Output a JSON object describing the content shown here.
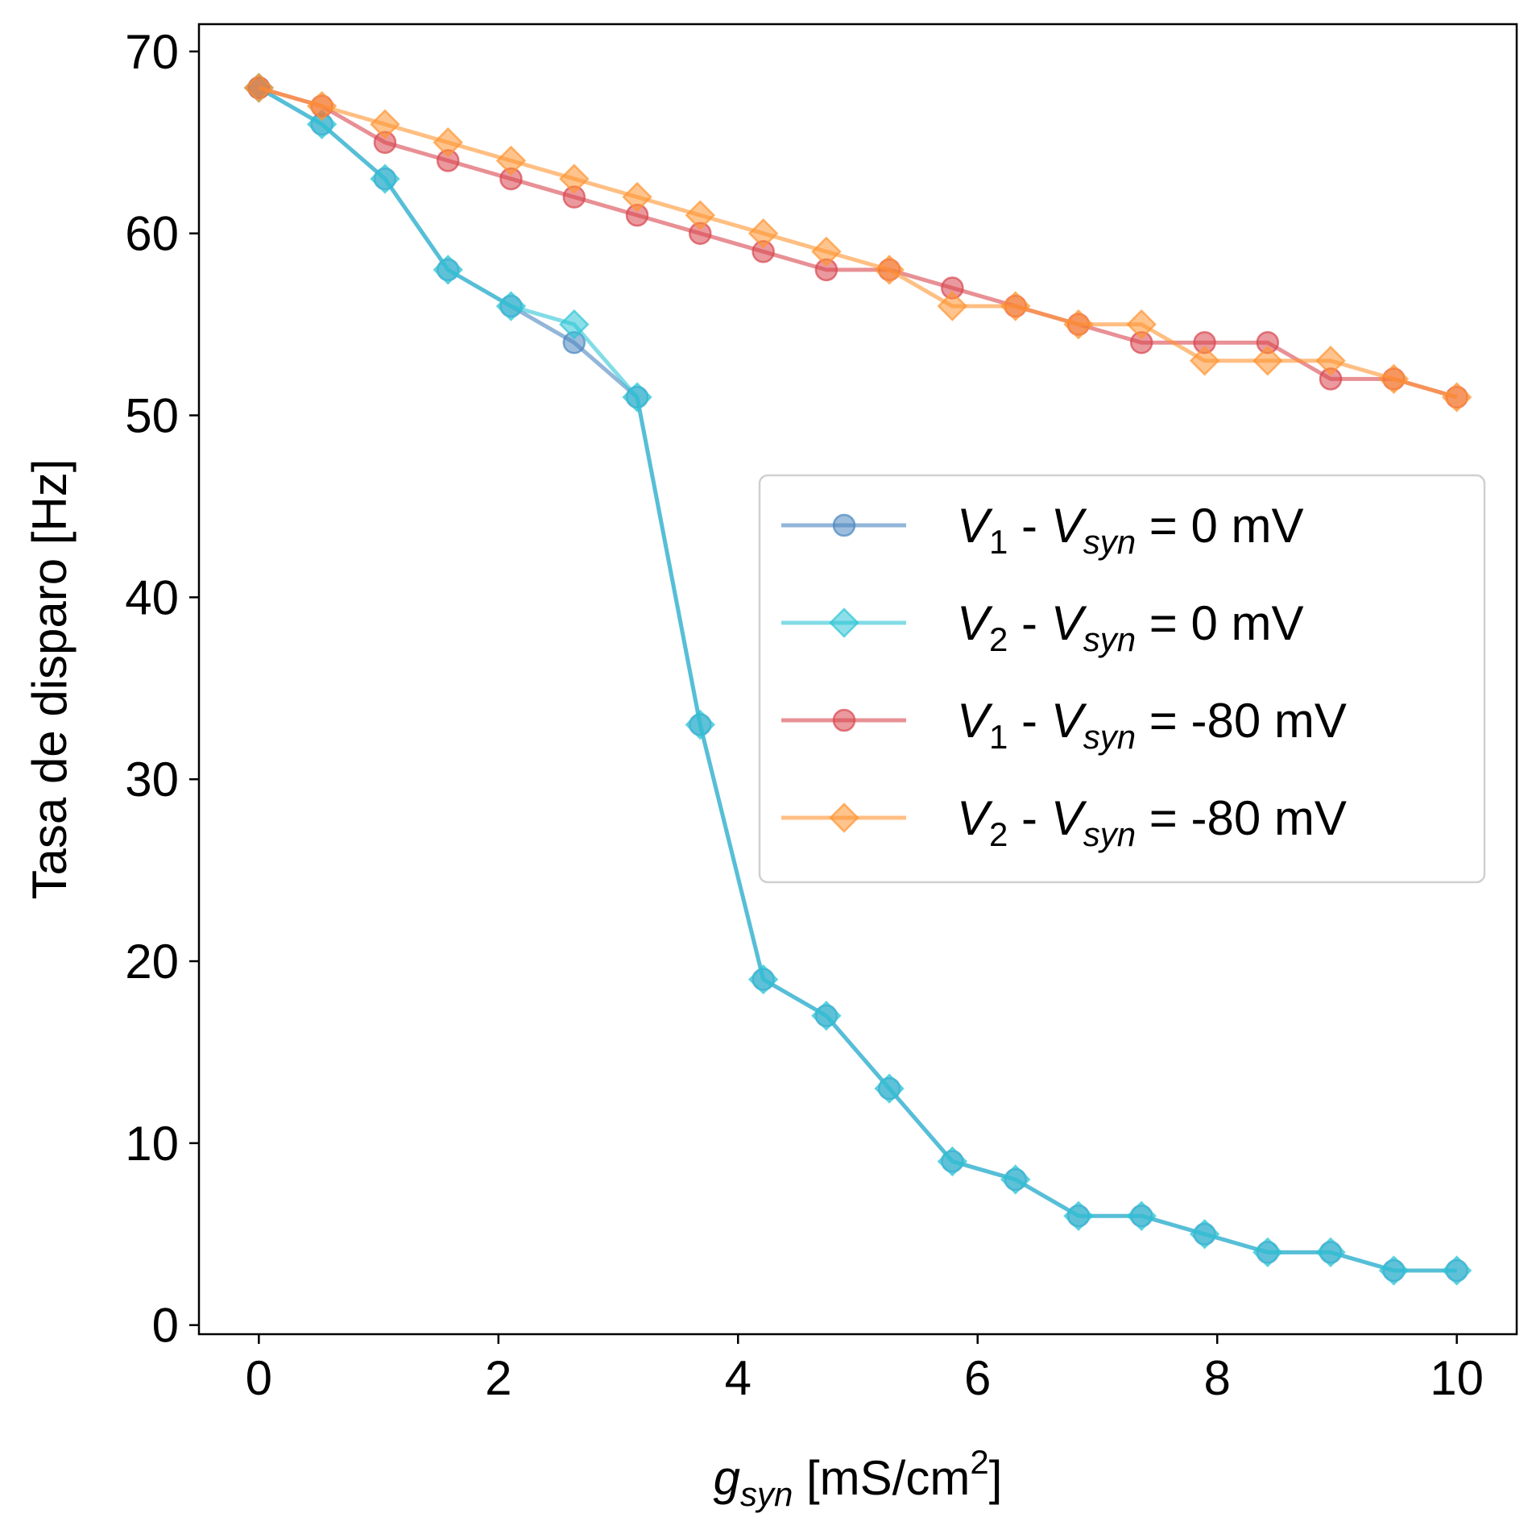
{
  "chart_data": {
    "type": "line",
    "xlabel": {
      "main": "g",
      "sub": "syn",
      "unit_pre": " [mS/cm",
      "sup": "2",
      "unit_post": "]"
    },
    "ylabel": "Tasa de disparo [Hz]",
    "xlim": [
      -0.5,
      10.5
    ],
    "ylim": [
      -0.5,
      71.5
    ],
    "xticks": [
      0,
      2,
      4,
      6,
      8,
      10
    ],
    "xtick_labels": [
      "0",
      "2",
      "4",
      "6",
      "8",
      "10"
    ],
    "yticks": [
      0,
      10,
      20,
      30,
      40,
      50,
      60,
      70
    ],
    "ytick_labels": [
      "0",
      "10",
      "20",
      "30",
      "40",
      "50",
      "60",
      "70"
    ],
    "grid": false,
    "legend_position": "center-right",
    "x": [
      0,
      0.526,
      1.053,
      1.579,
      2.105,
      2.632,
      3.158,
      3.684,
      4.211,
      4.737,
      5.263,
      5.789,
      6.316,
      6.842,
      7.368,
      7.895,
      8.421,
      8.947,
      9.474,
      10
    ],
    "series": [
      {
        "name": "V1 - Vsyn = 0 mV",
        "label_main": "V",
        "label_index": "1",
        "label_mid": " - ",
        "label_syn": "V",
        "label_syn_sub": "syn",
        "label_end": " = 0 mV",
        "color": "#4a86c0",
        "marker": "circle",
        "values": [
          68,
          66,
          63,
          58,
          56,
          54,
          51,
          33,
          19,
          17,
          13,
          9,
          8,
          6,
          6,
          5,
          4,
          4,
          3,
          3
        ]
      },
      {
        "name": "V2 - Vsyn = 0 mV",
        "label_main": "V",
        "label_index": "2",
        "label_mid": " - ",
        "label_syn": "V",
        "label_syn_sub": "syn",
        "label_end": " = 0 mV",
        "color": "#2ec4d6",
        "marker": "diamond",
        "values": [
          68,
          66,
          63,
          58,
          56,
          55,
          51,
          33,
          19,
          17,
          13,
          9,
          8,
          6,
          6,
          5,
          4,
          4,
          3,
          3
        ]
      },
      {
        "name": "V1 - Vsyn = -80 mV",
        "label_main": "V",
        "label_index": "1",
        "label_mid": " - ",
        "label_syn": "V",
        "label_syn_sub": "syn",
        "label_end": " = -80 mV",
        "color": "#d9464f",
        "marker": "circle",
        "values": [
          68,
          67,
          65,
          64,
          63,
          62,
          61,
          60,
          59,
          58,
          58,
          57,
          56,
          55,
          54,
          54,
          54,
          52,
          52,
          51
        ]
      },
      {
        "name": "V2 - Vsyn = -80 mV",
        "label_main": "V",
        "label_index": "2",
        "label_mid": " - ",
        "label_syn": "V",
        "label_syn_sub": "syn",
        "label_end": " = -80 mV",
        "color": "#ff9430",
        "marker": "diamond",
        "values": [
          68,
          67,
          66,
          65,
          64,
          63,
          62,
          61,
          60,
          59,
          58,
          56,
          56,
          55,
          55,
          53,
          53,
          53,
          52,
          51
        ]
      }
    ]
  }
}
